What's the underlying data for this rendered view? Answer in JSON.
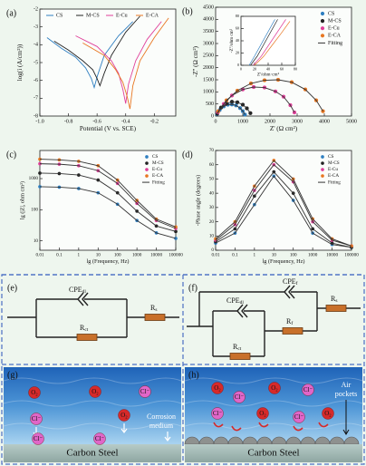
{
  "chart_data": [
    {
      "type": "line",
      "label": "(a)",
      "xlabel": "Potential (V vs. SCE)",
      "ylabel": "log(i (A/cm²))",
      "xlim": [
        -1.0,
        -0.05
      ],
      "xticks": [
        {
          "value": -1.0,
          "label": "-1.0"
        },
        -0.8,
        -0.6,
        -0.4,
        -0.2
      ],
      "ylim": [
        -8,
        -2
      ],
      "yticks": [
        -8,
        -7,
        -6,
        -5,
        -4,
        -3,
        -2
      ],
      "legend": "top",
      "series": [
        {
          "name": "CS",
          "color": "#2f7fc1",
          "mode": "line",
          "x": [
            -0.95,
            -0.85,
            -0.75,
            -0.68,
            -0.64,
            -0.62,
            -0.6,
            -0.55,
            -0.45,
            -0.35
          ],
          "values": [
            -3.6,
            -4.2,
            -4.7,
            -5.3,
            -5.9,
            -6.4,
            -5.8,
            -4.6,
            -3.5,
            -2.7
          ]
        },
        {
          "name": "M-CS",
          "color": "#222222",
          "mode": "line",
          "x": [
            -0.9,
            -0.8,
            -0.7,
            -0.63,
            -0.6,
            -0.58,
            -0.55,
            -0.5,
            -0.4,
            -0.3
          ],
          "values": [
            -3.8,
            -4.3,
            -4.9,
            -5.4,
            -5.9,
            -6.3,
            -5.6,
            -4.6,
            -3.3,
            -2.4
          ]
        },
        {
          "name": "E-Cu",
          "color": "#e0409a",
          "mode": "line",
          "x": [
            -0.75,
            -0.6,
            -0.5,
            -0.45,
            -0.42,
            -0.4,
            -0.38,
            -0.33,
            -0.25,
            -0.15
          ],
          "values": [
            -3.5,
            -4.1,
            -4.9,
            -5.6,
            -6.5,
            -7.3,
            -6.2,
            -4.9,
            -3.7,
            -2.7
          ]
        },
        {
          "name": "E-CA",
          "color": "#e87722",
          "mode": "line",
          "x": [
            -0.7,
            -0.55,
            -0.47,
            -0.42,
            -0.39,
            -0.37,
            -0.35,
            -0.3,
            -0.2,
            -0.1
          ],
          "values": [
            -3.9,
            -4.6,
            -5.4,
            -6.1,
            -6.9,
            -7.6,
            -6.3,
            -4.9,
            -3.6,
            -2.5
          ]
        }
      ]
    },
    {
      "type": "line",
      "label": "(b)",
      "xlabel": "Z' (Ω cm²)",
      "ylabel": "-Z'' (Ω cm²)",
      "xlim": [
        0,
        5000
      ],
      "xticks": [
        0,
        1000,
        2000,
        3000,
        4000,
        5000
      ],
      "ylim": [
        0,
        4500
      ],
      "yticks": [
        0,
        500,
        1000,
        1500,
        2000,
        2500,
        3000,
        3500,
        4000,
        4500
      ],
      "legend": "right",
      "series": [
        {
          "name": "CS",
          "color": "#2f7fc1",
          "mode": "markers",
          "x": [
            50,
            150,
            300,
            450,
            600,
            750,
            900,
            1000,
            1080
          ],
          "values": [
            80,
            250,
            400,
            470,
            480,
            440,
            330,
            200,
            60
          ]
        },
        {
          "name": "M-CS",
          "color": "#222222",
          "mode": "markers",
          "x": [
            60,
            200,
            400,
            600,
            800,
            1000,
            1150,
            1280
          ],
          "values": [
            100,
            350,
            520,
            590,
            570,
            470,
            320,
            120
          ]
        },
        {
          "name": "E-Cu",
          "color": "#e0409a",
          "mode": "markers",
          "x": [
            80,
            300,
            600,
            1000,
            1400,
            1800,
            2200,
            2500,
            2750,
            2900
          ],
          "values": [
            150,
            500,
            850,
            1100,
            1200,
            1180,
            1020,
            800,
            450,
            150
          ]
        },
        {
          "name": "E-CA",
          "color": "#e87722",
          "mode": "markers",
          "x": [
            100,
            400,
            800,
            1300,
            1800,
            2300,
            2800,
            3300,
            3700,
            3950
          ],
          "values": [
            200,
            650,
            1050,
            1350,
            1480,
            1500,
            1400,
            1100,
            650,
            200
          ]
        },
        {
          "name": "Fitting",
          "color": "#333333",
          "mode": "line",
          "x": [
            50,
            150,
            300,
            450,
            600,
            750,
            900,
            1000,
            1080,
            null,
            60,
            200,
            400,
            600,
            800,
            1000,
            1150,
            1280,
            null,
            80,
            300,
            600,
            1000,
            1400,
            1800,
            2200,
            2500,
            2750,
            2900,
            null,
            100,
            400,
            800,
            1300,
            1800,
            2300,
            2800,
            3300,
            3700,
            3950
          ],
          "values": [
            80,
            250,
            400,
            470,
            480,
            440,
            330,
            200,
            60,
            null,
            100,
            350,
            520,
            590,
            570,
            470,
            320,
            120,
            null,
            150,
            500,
            850,
            1100,
            1200,
            1180,
            1020,
            800,
            450,
            150,
            null,
            200,
            650,
            1050,
            1350,
            1480,
            1500,
            1400,
            1100,
            650,
            200
          ]
        }
      ]
    },
    {
      "type": "line",
      "label": "(c)",
      "xlabel": "lg (Frequency, Hz)",
      "ylabel": "lg (|Z|, ohm cm²)",
      "xscale": "log",
      "yscale": "log",
      "xlim": [
        0.01,
        100000
      ],
      "xticks": [
        0.01,
        0.1,
        1,
        10,
        100,
        1000,
        10000,
        100000
      ],
      "ylim": [
        5,
        8000
      ],
      "yticks": [
        10,
        100,
        1000
      ],
      "legend": "right",
      "x": [
        0.01,
        0.1,
        1,
        10,
        100,
        1000,
        10000,
        100000
      ],
      "series": [
        {
          "name": "CS",
          "color": "#2f7fc1",
          "mode": "markers",
          "values": [
            550,
            530,
            480,
            350,
            150,
            45,
            18,
            12
          ]
        },
        {
          "name": "M-CS",
          "color": "#222222",
          "mode": "markers",
          "values": [
            1500,
            1450,
            1300,
            900,
            350,
            90,
            30,
            20
          ]
        },
        {
          "name": "E-Cu",
          "color": "#e0409a",
          "mode": "markers",
          "values": [
            3000,
            2900,
            2600,
            1800,
            700,
            160,
            45,
            25
          ]
        },
        {
          "name": "E-CA",
          "color": "#e87722",
          "mode": "markers",
          "values": [
            4200,
            4000,
            3600,
            2600,
            900,
            200,
            50,
            28
          ]
        },
        {
          "name": "Fitting",
          "color": "#333333",
          "mode": "line",
          "x": [
            0.01,
            0.1,
            1,
            10,
            100,
            1000,
            10000,
            100000,
            null,
            0.01,
            0.1,
            1,
            10,
            100,
            1000,
            10000,
            100000,
            null,
            0.01,
            0.1,
            1,
            10,
            100,
            1000,
            10000,
            100000,
            null,
            0.01,
            0.1,
            1,
            10,
            100,
            1000,
            10000,
            100000
          ],
          "values": [
            550,
            530,
            480,
            350,
            150,
            45,
            18,
            12,
            null,
            1500,
            1450,
            1300,
            900,
            350,
            90,
            30,
            20,
            null,
            3000,
            2900,
            2600,
            1800,
            700,
            160,
            45,
            25,
            null,
            4200,
            4000,
            3600,
            2600,
            900,
            200,
            50,
            28
          ]
        }
      ]
    },
    {
      "type": "line",
      "label": "(d)",
      "xlabel": "lg (Frequency, Hz)",
      "ylabel": "-Phase angle (degrees)",
      "xscale": "log",
      "xlim": [
        0.01,
        100000
      ],
      "xticks": [
        0.01,
        0.1,
        1,
        10,
        100,
        1000,
        10000,
        100000
      ],
      "ylim": [
        0,
        70
      ],
      "yticks": [
        0,
        10,
        20,
        30,
        40,
        50,
        60,
        70
      ],
      "legend": "right",
      "x": [
        0.01,
        0.1,
        1,
        10,
        100,
        1000,
        10000,
        100000
      ],
      "series": [
        {
          "name": "CS",
          "color": "#2f7fc1",
          "mode": "markers",
          "values": [
            5,
            12,
            32,
            52,
            35,
            12,
            4,
            2
          ]
        },
        {
          "name": "M-CS",
          "color": "#222222",
          "mode": "markers",
          "values": [
            6,
            15,
            38,
            55,
            40,
            15,
            5,
            2
          ]
        },
        {
          "name": "E-Cu",
          "color": "#e0409a",
          "mode": "markers",
          "values": [
            7,
            18,
            42,
            60,
            48,
            20,
            7,
            3
          ]
        },
        {
          "name": "E-CA",
          "color": "#e87722",
          "mode": "markers",
          "values": [
            8,
            20,
            45,
            63,
            50,
            22,
            8,
            3
          ]
        },
        {
          "name": "Fitting",
          "color": "#333333",
          "mode": "line",
          "x": [
            0.01,
            0.1,
            1,
            10,
            100,
            1000,
            10000,
            100000,
            null,
            0.01,
            0.1,
            1,
            10,
            100,
            1000,
            10000,
            100000,
            null,
            0.01,
            0.1,
            1,
            10,
            100,
            1000,
            10000,
            100000,
            null,
            0.01,
            0.1,
            1,
            10,
            100,
            1000,
            10000,
            100000
          ],
          "values": [
            5,
            12,
            32,
            52,
            35,
            12,
            4,
            2,
            null,
            6,
            15,
            38,
            55,
            40,
            15,
            5,
            2,
            null,
            7,
            18,
            42,
            60,
            48,
            20,
            7,
            3,
            null,
            8,
            20,
            45,
            63,
            50,
            22,
            8,
            3
          ]
        }
      ]
    },
    {
      "type": "line",
      "xlabel": "Z'/ohm·cm²",
      "ylabel": "-Z''/ohm cm²",
      "xlim": [
        0,
        80
      ],
      "xticks": [
        0,
        20,
        40,
        60,
        80
      ],
      "ylim": [
        0,
        80
      ],
      "yticks": [
        0,
        20,
        40,
        60,
        80
      ],
      "series": [
        {
          "name": "CS",
          "color": "#2f7fc1",
          "mode": "line",
          "x": [
            12,
            20,
            30,
            40,
            50
          ],
          "values": [
            0,
            15,
            35,
            55,
            75
          ]
        },
        {
          "name": "M-CS",
          "color": "#222222",
          "mode": "line",
          "x": [
            14,
            24,
            34,
            44,
            54
          ],
          "values": [
            0,
            15,
            35,
            55,
            75
          ]
        },
        {
          "name": "E-Cu",
          "color": "#e0409a",
          "mode": "line",
          "x": [
            18,
            30,
            42,
            54,
            66
          ],
          "values": [
            0,
            15,
            35,
            55,
            75
          ]
        },
        {
          "name": "E-CA",
          "color": "#e87722",
          "mode": "line",
          "x": [
            20,
            33,
            46,
            59,
            72
          ],
          "values": [
            0,
            14,
            33,
            52,
            72
          ]
        }
      ]
    }
  ],
  "circuits": {
    "e": {
      "label": "(e)",
      "cpe_dl": {
        "text": "CPE",
        "sub": "dl"
      },
      "r_ct": {
        "text": "R",
        "sub": "ct"
      },
      "r_s": {
        "text": "R",
        "sub": "s"
      }
    },
    "f": {
      "label": "(f)",
      "cpe_f": {
        "text": "CPE",
        "sub": "f"
      },
      "cpe_dl": {
        "text": "CPE",
        "sub": "dl"
      },
      "r_ct": {
        "text": "R",
        "sub": "ct"
      },
      "r_f": {
        "text": "R",
        "sub": "f"
      },
      "r_s": {
        "text": "R",
        "sub": "s"
      }
    }
  },
  "illustrations": {
    "g": {
      "label": "(g)",
      "particles": [
        {
          "label": "O₂",
          "color": "#d62a2a"
        },
        {
          "label": "O₂",
          "color": "#d62a2a"
        },
        {
          "label": "Cl⁻",
          "color": "#e066c8"
        },
        {
          "label": "Cl⁻",
          "color": "#e066c8"
        },
        {
          "label": "O₂",
          "color": "#d62a2a"
        },
        {
          "label": "Cl⁻",
          "color": "#e066c8"
        },
        {
          "label": "Cl⁻",
          "color": "#e066c8"
        }
      ],
      "medium": [
        "Corrosion",
        "medium"
      ],
      "substrate": "Carbon Steel"
    },
    "h": {
      "label": "(h)",
      "particles": [
        {
          "label": "O₂",
          "color": "#d62a2a"
        },
        {
          "label": "Cl⁻",
          "color": "#e066c8"
        },
        {
          "label": "O₂",
          "color": "#d62a2a"
        },
        {
          "label": "Cl⁻",
          "color": "#e066c8"
        },
        {
          "label": "Cl⁻",
          "color": "#e066c8"
        },
        {
          "label": "O₂",
          "color": "#d62a2a"
        },
        {
          "label": "Cl⁻",
          "color": "#e066c8"
        },
        {
          "label": "O₂",
          "color": "#d62a2a"
        }
      ],
      "pockets": [
        "Air",
        "pockets"
      ],
      "substrate": "Carbon Steel"
    }
  }
}
